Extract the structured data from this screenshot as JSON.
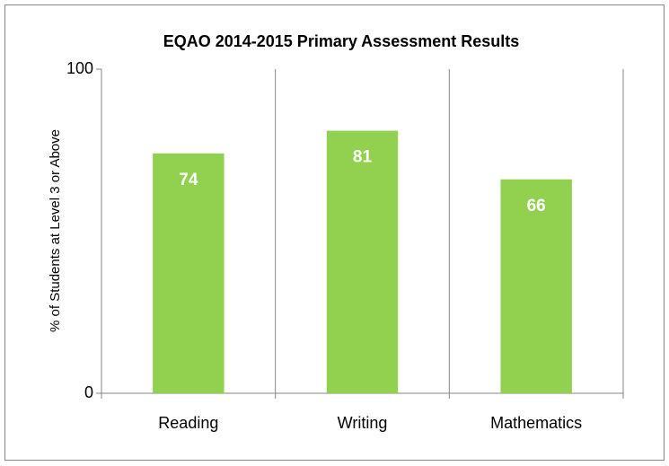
{
  "chart_data": {
    "type": "bar",
    "title": "EQAO 2014-2015 Primary Assessment Results",
    "y_axis_label": "% of Students at Level 3 or Above",
    "categories": [
      "Reading",
      "Writing",
      "Mathematics"
    ],
    "values": [
      74,
      81,
      66
    ],
    "color": "#92d050",
    "ylim": [
      0,
      100
    ],
    "yticks": [
      0,
      100
    ],
    "grid": true
  }
}
